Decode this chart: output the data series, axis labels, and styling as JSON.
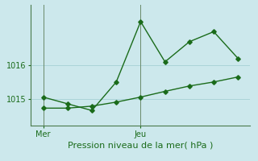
{
  "xlabel": "Pression niveau de la mer( hPa )",
  "background_color": "#cce8ec",
  "grid_color": "#aad4d8",
  "line_color": "#1a6b1a",
  "yticks": [
    1015,
    1016
  ],
  "ylim": [
    1014.2,
    1017.8
  ],
  "xtick_labels": [
    "Mer",
    "Jeu"
  ],
  "xtick_positions": [
    0.5,
    4.5
  ],
  "vline_positions": [
    0.5,
    4.5
  ],
  "xlim": [
    0,
    9
  ],
  "series1_x": [
    0.5,
    1.5,
    2.5,
    3.5,
    4.5,
    5.5,
    6.5,
    7.5,
    8.5
  ],
  "series1_y": [
    1015.05,
    1014.85,
    1014.65,
    1015.5,
    1017.3,
    1016.1,
    1016.7,
    1017.0,
    1016.2
  ],
  "series2_x": [
    0.5,
    1.5,
    2.5,
    3.5,
    4.5,
    5.5,
    6.5,
    7.5,
    8.5
  ],
  "series2_y": [
    1014.72,
    1014.72,
    1014.78,
    1014.9,
    1015.05,
    1015.22,
    1015.38,
    1015.5,
    1015.65
  ],
  "marker_size": 2.8,
  "line_width": 1.0,
  "xlabel_fontsize": 8,
  "tick_fontsize": 7
}
